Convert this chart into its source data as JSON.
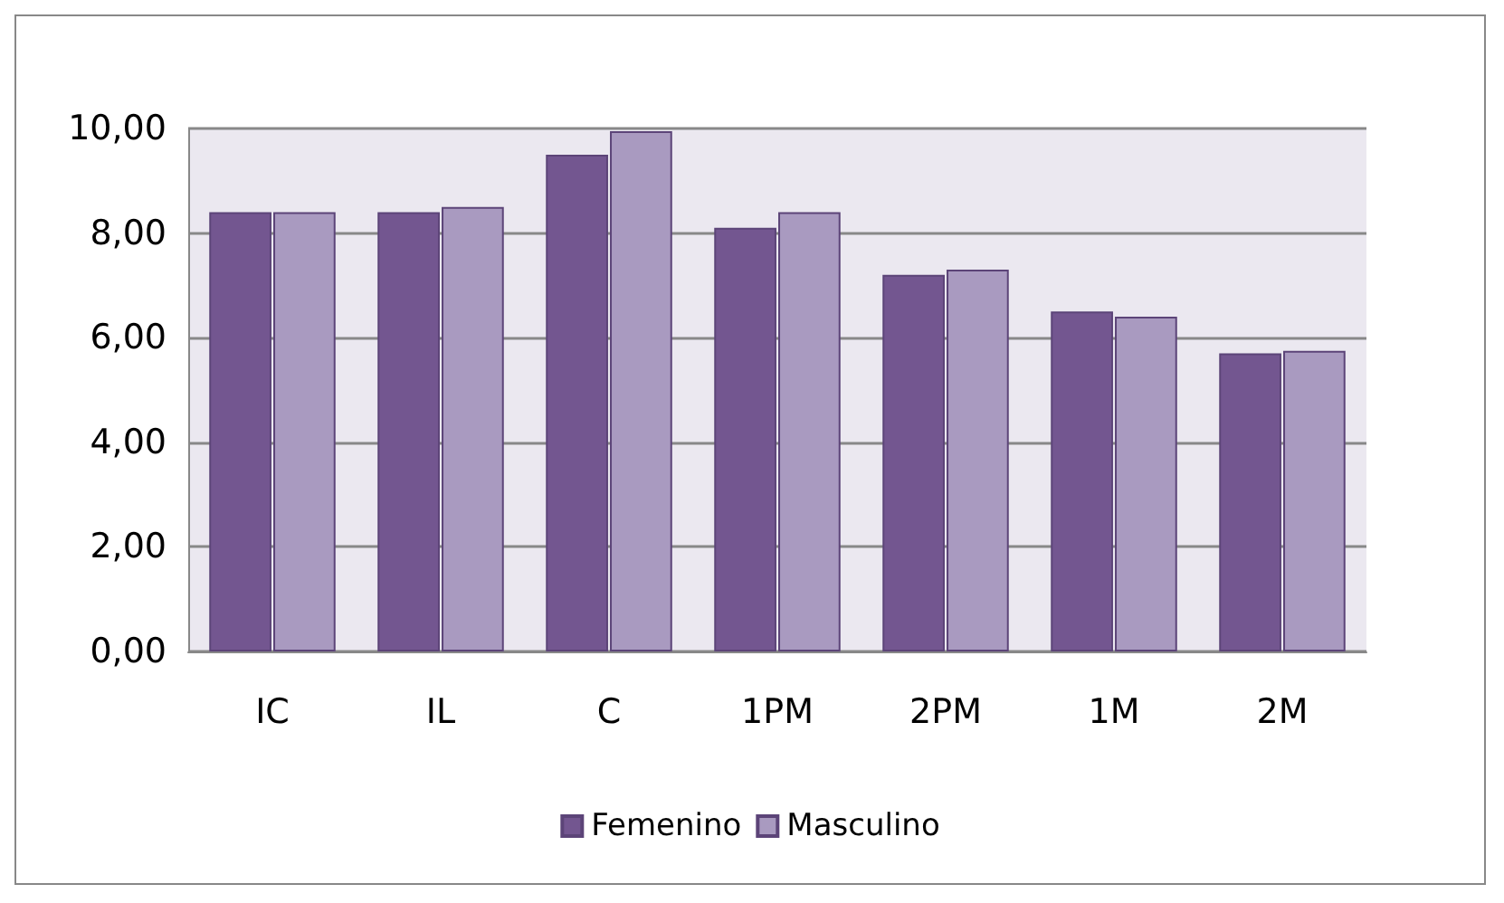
{
  "chart_data": {
    "type": "bar",
    "categories": [
      "IC",
      "IL",
      "C",
      "1PM",
      "2PM",
      "1M",
      "2M"
    ],
    "series": [
      {
        "name": "Femenino",
        "color": "#735690",
        "values": [
          8.4,
          8.4,
          9.5,
          8.1,
          7.2,
          6.5,
          5.7
        ]
      },
      {
        "name": "Masculino",
        "color": "#a99ac0",
        "values": [
          8.4,
          8.5,
          9.95,
          8.4,
          7.3,
          6.4,
          5.75
        ]
      }
    ],
    "ylim": [
      0,
      10
    ],
    "yticks": [
      {
        "value": 0,
        "label": "0,00"
      },
      {
        "value": 2,
        "label": "2,00"
      },
      {
        "value": 4,
        "label": "4,00"
      },
      {
        "value": 6,
        "label": "6,00"
      },
      {
        "value": 8,
        "label": "8,00"
      },
      {
        "value": 10,
        "label": "10,00"
      }
    ],
    "grid": "y",
    "legend": "bottom"
  }
}
